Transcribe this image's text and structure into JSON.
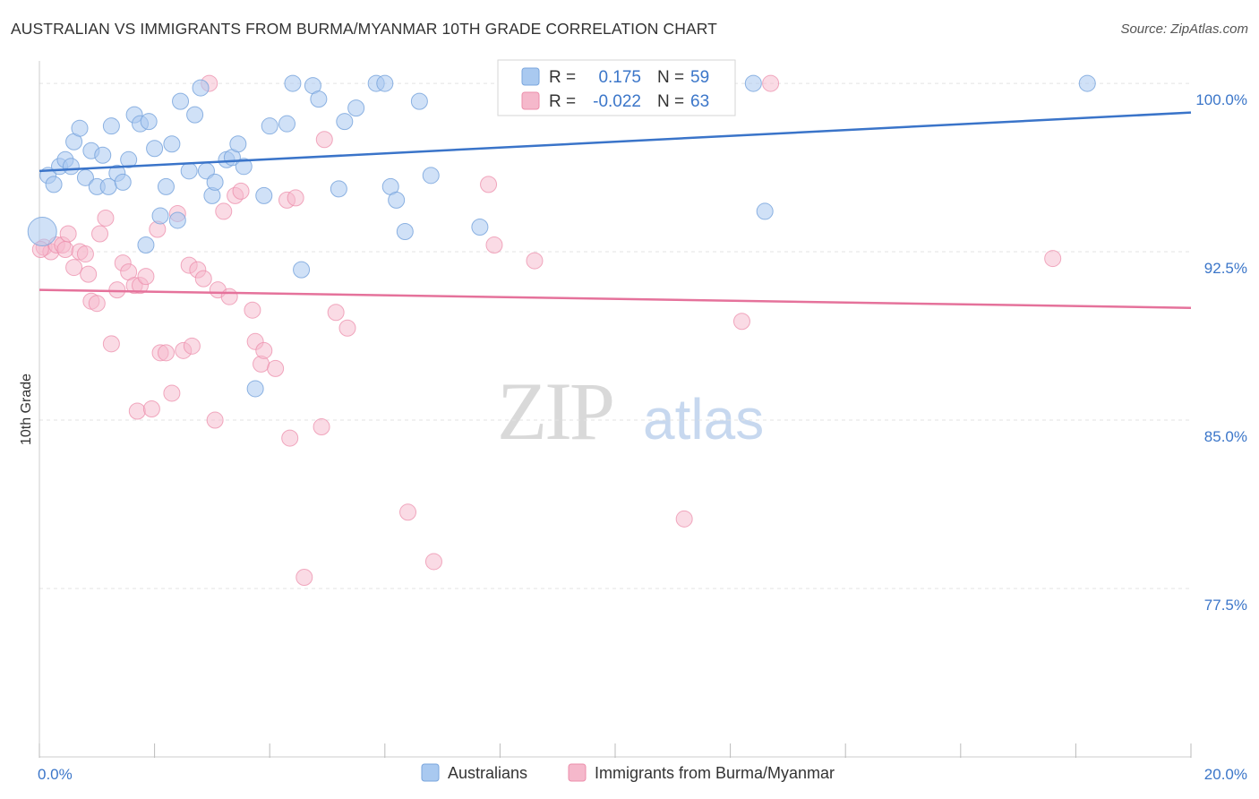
{
  "header": {
    "title": "AUSTRALIAN VS IMMIGRANTS FROM BURMA/MYANMAR 10TH GRADE CORRELATION CHART",
    "source": "Source: ZipAtlas.com"
  },
  "watermark": {
    "zip": "ZIP",
    "atlas": "atlas"
  },
  "stats": [
    {
      "r_label": "R =",
      "r_value": "0.175",
      "n_label": "N =",
      "n_value": "59"
    },
    {
      "r_label": "R =",
      "r_value": "-0.022",
      "n_label": "N =",
      "n_value": "63"
    }
  ],
  "legend": {
    "items": [
      "Australians",
      "Immigrants from Burma/Myanmar"
    ]
  },
  "colors": {
    "blue_fill": "#a9c9f0",
    "blue_stroke": "#7aa6dd",
    "blue_line": "#3a74c9",
    "pink_fill": "#f5b8cb",
    "pink_stroke": "#ec8eab",
    "pink_line": "#e5729b",
    "tick_label": "#3b76c9",
    "grid": "#e3e3e3"
  },
  "chart_data": {
    "type": "scatter",
    "xlabel": "",
    "ylabel": "10th Grade",
    "xlim": [
      0,
      20
    ],
    "ylim": [
      70.0,
      101.0
    ],
    "x_tick_labels": [
      {
        "value": 0,
        "label": "0.0%"
      },
      {
        "value": 20,
        "label": "20.0%"
      }
    ],
    "y_tick_labels": [
      {
        "value": 100.0,
        "label": "100.0%"
      },
      {
        "value": 92.5,
        "label": "92.5%"
      },
      {
        "value": 85.0,
        "label": "85.0%"
      },
      {
        "value": 77.5,
        "label": "77.5%"
      }
    ],
    "x_minor_ticks": [
      0,
      2,
      4,
      6,
      8,
      10,
      12,
      14,
      16,
      18,
      20
    ],
    "grid": true,
    "legend_position": "bottom-center",
    "series": [
      {
        "name": "Australians",
        "r": 0.175,
        "n": 59,
        "trend": {
          "x": [
            0,
            20
          ],
          "y": [
            96.1,
            98.7
          ]
        },
        "points": [
          [
            0.05,
            93.4
          ],
          [
            0.15,
            95.9
          ],
          [
            0.25,
            95.5
          ],
          [
            0.35,
            96.3
          ],
          [
            0.45,
            96.6
          ],
          [
            0.55,
            96.3
          ],
          [
            0.6,
            97.4
          ],
          [
            0.7,
            98.0
          ],
          [
            0.8,
            95.8
          ],
          [
            0.9,
            97.0
          ],
          [
            1.0,
            95.4
          ],
          [
            1.1,
            96.8
          ],
          [
            1.2,
            95.4
          ],
          [
            1.25,
            98.1
          ],
          [
            1.35,
            96.0
          ],
          [
            1.45,
            95.6
          ],
          [
            1.55,
            96.6
          ],
          [
            1.65,
            98.6
          ],
          [
            1.75,
            98.2
          ],
          [
            1.85,
            92.8
          ],
          [
            1.9,
            98.3
          ],
          [
            2.0,
            97.1
          ],
          [
            2.1,
            94.1
          ],
          [
            2.2,
            95.4
          ],
          [
            2.3,
            97.3
          ],
          [
            2.4,
            93.9
          ],
          [
            2.45,
            99.2
          ],
          [
            2.6,
            96.1
          ],
          [
            2.7,
            98.6
          ],
          [
            2.8,
            99.8
          ],
          [
            2.9,
            96.1
          ],
          [
            3.0,
            95.0
          ],
          [
            3.05,
            95.6
          ],
          [
            3.25,
            96.6
          ],
          [
            3.35,
            96.7
          ],
          [
            3.45,
            97.3
          ],
          [
            3.55,
            96.3
          ],
          [
            3.75,
            86.4
          ],
          [
            3.9,
            95.0
          ],
          [
            4.0,
            98.1
          ],
          [
            4.3,
            98.2
          ],
          [
            4.4,
            100.0
          ],
          [
            4.55,
            91.7
          ],
          [
            4.75,
            99.9
          ],
          [
            4.85,
            99.3
          ],
          [
            5.2,
            95.3
          ],
          [
            5.3,
            98.3
          ],
          [
            5.5,
            98.9
          ],
          [
            5.85,
            100.0
          ],
          [
            6.0,
            100.0
          ],
          [
            6.1,
            95.4
          ],
          [
            6.2,
            94.8
          ],
          [
            6.35,
            93.4
          ],
          [
            6.6,
            99.2
          ],
          [
            6.8,
            95.9
          ],
          [
            7.65,
            93.6
          ],
          [
            12.4,
            100.0
          ],
          [
            12.6,
            94.3
          ],
          [
            18.2,
            100.0
          ]
        ],
        "point_sizes": {
          "0": "large"
        }
      },
      {
        "name": "Immigrants from Burma/Myanmar",
        "r": -0.022,
        "n": 63,
        "trend": {
          "x": [
            0,
            20
          ],
          "y": [
            90.8,
            90.0
          ]
        },
        "points": [
          [
            0.08,
            92.7
          ],
          [
            0.2,
            92.5
          ],
          [
            0.3,
            92.8
          ],
          [
            0.4,
            92.8
          ],
          [
            0.45,
            92.6
          ],
          [
            0.5,
            93.3
          ],
          [
            0.6,
            91.8
          ],
          [
            0.7,
            92.5
          ],
          [
            0.8,
            92.4
          ],
          [
            0.85,
            91.5
          ],
          [
            0.9,
            90.3
          ],
          [
            1.0,
            90.2
          ],
          [
            1.05,
            93.3
          ],
          [
            1.15,
            94.0
          ],
          [
            1.25,
            88.4
          ],
          [
            1.35,
            90.8
          ],
          [
            1.45,
            92.0
          ],
          [
            1.55,
            91.6
          ],
          [
            1.65,
            91.0
          ],
          [
            1.7,
            85.4
          ],
          [
            1.75,
            91.0
          ],
          [
            1.85,
            91.4
          ],
          [
            1.95,
            85.5
          ],
          [
            2.05,
            93.5
          ],
          [
            2.1,
            88.0
          ],
          [
            2.2,
            88.0
          ],
          [
            2.3,
            86.2
          ],
          [
            2.4,
            94.2
          ],
          [
            2.5,
            88.1
          ],
          [
            2.6,
            91.9
          ],
          [
            2.65,
            88.3
          ],
          [
            2.75,
            91.7
          ],
          [
            2.85,
            91.3
          ],
          [
            2.95,
            100.0
          ],
          [
            3.05,
            85.0
          ],
          [
            3.1,
            90.8
          ],
          [
            3.2,
            94.3
          ],
          [
            3.3,
            90.5
          ],
          [
            3.4,
            95.0
          ],
          [
            3.5,
            95.2
          ],
          [
            3.7,
            89.9
          ],
          [
            3.75,
            88.5
          ],
          [
            3.85,
            87.5
          ],
          [
            3.9,
            88.1
          ],
          [
            4.1,
            87.3
          ],
          [
            4.3,
            94.8
          ],
          [
            4.35,
            84.2
          ],
          [
            4.45,
            94.9
          ],
          [
            4.6,
            78.0
          ],
          [
            4.9,
            84.7
          ],
          [
            4.95,
            97.5
          ],
          [
            5.15,
            89.8
          ],
          [
            5.35,
            89.1
          ],
          [
            6.4,
            80.9
          ],
          [
            6.85,
            78.7
          ],
          [
            7.8,
            95.5
          ],
          [
            7.9,
            92.8
          ],
          [
            8.6,
            92.1
          ],
          [
            11.2,
            80.6
          ],
          [
            12.2,
            89.4
          ],
          [
            12.7,
            100.0
          ],
          [
            17.6,
            92.2
          ],
          [
            0.02,
            92.6
          ]
        ]
      }
    ]
  }
}
